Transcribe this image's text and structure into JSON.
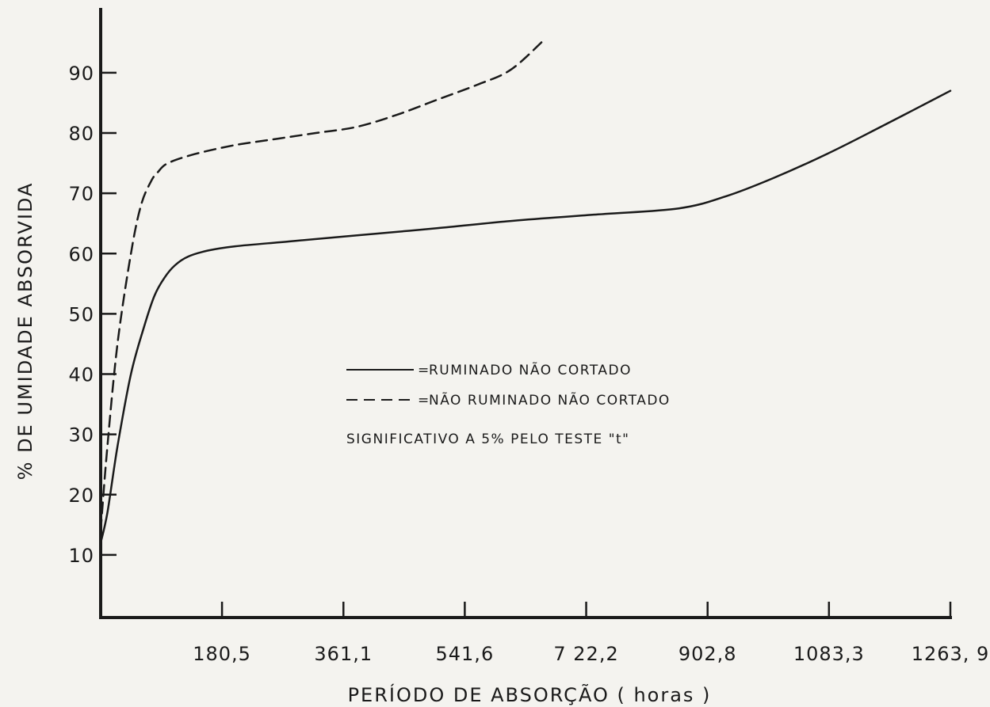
{
  "chart_data": {
    "type": "line",
    "xlabel": "PERÍODO DE ABSORÇÃO ( horas )",
    "ylabel": "% DE UMIDADE ABSORVIDA",
    "xlim": [
      0,
      1263.9
    ],
    "ylim": [
      0,
      100
    ],
    "x_ticks": [
      {
        "value": 180.5,
        "label": "180,5"
      },
      {
        "value": 361.1,
        "label": "361,1"
      },
      {
        "value": 541.6,
        "label": "541,6"
      },
      {
        "value": 722.2,
        "label": "7 22,2"
      },
      {
        "value": 902.8,
        "label": "902,8"
      },
      {
        "value": 1083.3,
        "label": "1083,3"
      },
      {
        "value": 1263.9,
        "label": "1263, 9"
      }
    ],
    "y_ticks": [
      {
        "value": 10,
        "label": "10"
      },
      {
        "value": 20,
        "label": "20"
      },
      {
        "value": 30,
        "label": "30"
      },
      {
        "value": 40,
        "label": "40"
      },
      {
        "value": 50,
        "label": "50"
      },
      {
        "value": 60,
        "label": "60"
      },
      {
        "value": 70,
        "label": "70"
      },
      {
        "value": 80,
        "label": "80"
      },
      {
        "value": 90,
        "label": "90"
      }
    ],
    "grid": false,
    "legend_position": "center",
    "series": [
      {
        "name": "RUMINADO NÃO CORTADO",
        "style": "solid",
        "color": "#1a1a1a",
        "x": [
          0,
          10,
          25,
          45,
          65,
          80,
          95,
          110,
          130,
          160,
          200,
          280,
          380,
          500,
          620,
          740,
          860,
          930,
          1000,
          1080,
          1160,
          1263.9
        ],
        "y": [
          12,
          17,
          28,
          40,
          48,
          53,
          56,
          58,
          59.5,
          60.5,
          61.2,
          62,
          63,
          64.2,
          65.5,
          66.5,
          67.5,
          69.5,
          72.5,
          76.5,
          81,
          87
        ]
      },
      {
        "name": "NÃO RUMINADO NÃO CORTADO",
        "style": "dashed",
        "color": "#1a1a1a",
        "x": [
          0,
          10,
          25,
          45,
          60,
          75,
          85,
          100,
          140,
          200,
          260,
          320,
          380,
          440,
          500,
          560,
          610,
          660
        ],
        "y": [
          14,
          28,
          45,
          60,
          68,
          72,
          73.5,
          75,
          76.5,
          78,
          79,
          80,
          81,
          83,
          85.5,
          88,
          90.5,
          95.5
        ]
      }
    ],
    "annotation": "SIGNIFICATIVO A 5% PELO TESTE \"t\""
  }
}
